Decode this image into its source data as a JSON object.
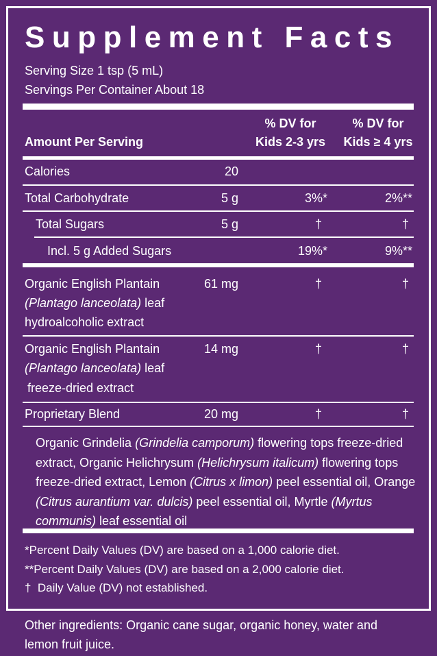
{
  "title": "Supplement Facts",
  "serving_size": "Serving Size 1 tsp (5 mL)",
  "servings_per_container": "Servings Per Container About 18",
  "columns": {
    "amount_per_serving": "Amount Per Serving",
    "dv_kids_2_3": [
      "% DV for",
      "Kids 2-3 yrs"
    ],
    "dv_kids_4": [
      "% DV for",
      "Kids ≥ 4 yrs"
    ]
  },
  "rows": [
    {
      "name": "Calories",
      "amount": "20"
    },
    {
      "name": "Total Carbohydrate",
      "amount": "5 g",
      "dv_kids_2_3": "3%*",
      "dv_kids_4": "2%**"
    },
    {
      "name": "Total Sugars",
      "amount": "5 g",
      "dv_kids_2_3": "†",
      "dv_kids_4": "†"
    },
    {
      "name": "Incl. 5 g Added Sugars",
      "dv_kids_2_3": "19%*",
      "dv_kids_4": "9%**"
    },
    {
      "name": [
        "Organic English Plantain",
        "(Plantago lanceolata)",
        "leaf",
        "hydroalcoholic extract"
      ],
      "amount": "61 mg",
      "dv_kids_2_3": "†",
      "dv_kids_4": "†"
    },
    {
      "name": [
        "Organic English Plantain",
        "(Plantago lanceolata)",
        "leaf",
        "freeze-dried extract"
      ],
      "amount": "14 mg",
      "dv_kids_2_3": "†",
      "dv_kids_4": "†"
    },
    {
      "name": "Proprietary Blend",
      "amount": "20 mg",
      "dv_kids_2_3": "†",
      "dv_kids_4": "†"
    }
  ],
  "blend_description": [
    "Organic Grindelia",
    "(Grindelia camporum)",
    "flowering tops freeze-dried extract, Organic Helichrysum",
    "(Helichrysum italicum)",
    "flowering tops freeze-dried extract, Lemon",
    "(Citrus x limon)",
    "peel essential oil, Orange",
    "(Citrus aurantium var. dulcis)",
    "peel essential oil, Myrtle",
    "(Myrtus communis)",
    "leaf essential oil"
  ],
  "footnotes": [
    "*Percent Daily Values (DV) are based on a 1,000 calorie diet.",
    "**Percent Daily Values (DV) are based on a 2,000 calorie diet.",
    "†  Daily Value (DV) not established."
  ],
  "other_ingredients": "Other ingredients: Organic cane sugar, organic honey, water and lemon fruit juice."
}
